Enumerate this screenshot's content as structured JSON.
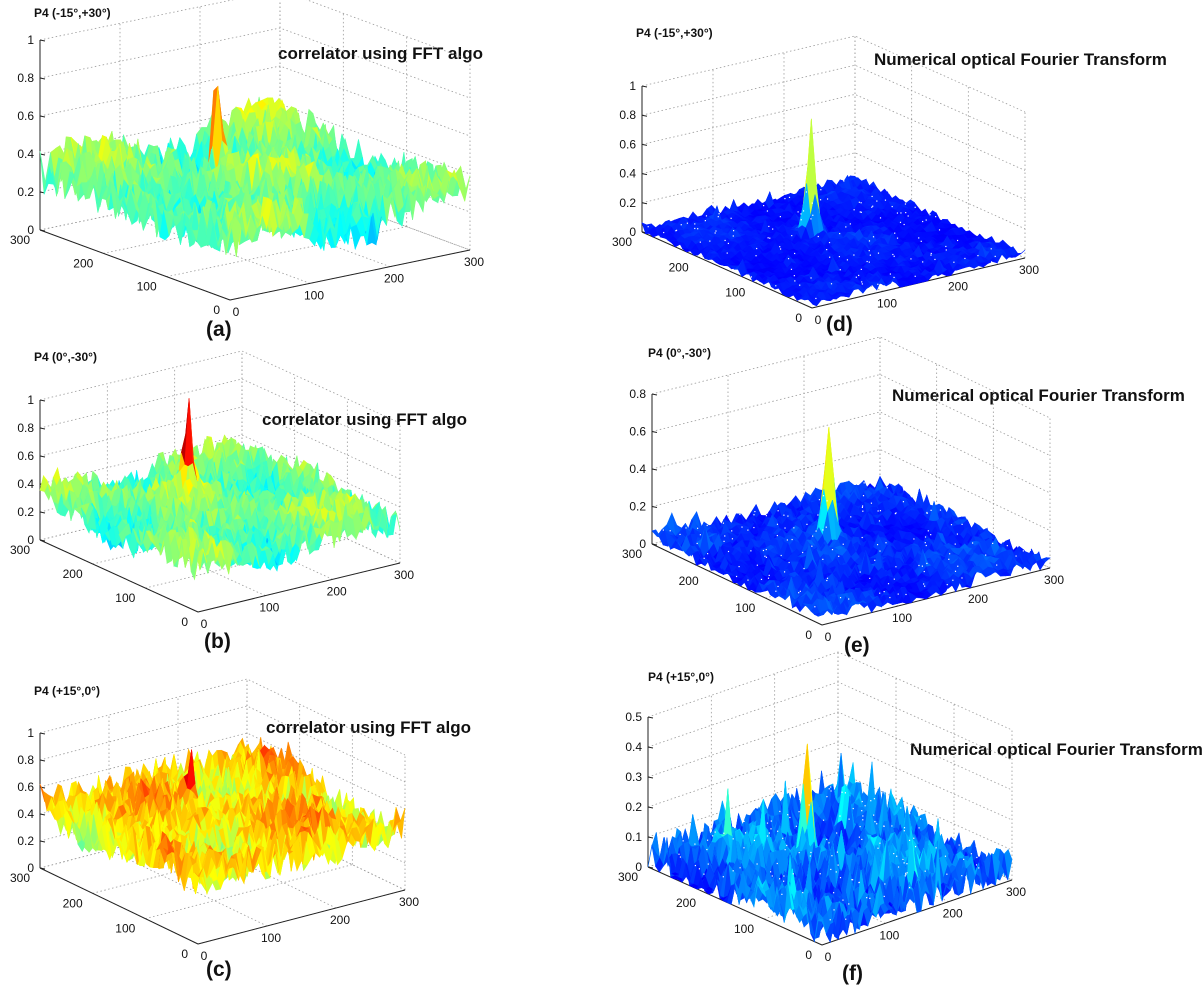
{
  "chart_data": [
    {
      "type": "surface",
      "panel": "(a)",
      "title": "P4 (-15°,+30°)",
      "label": "correlator using FFT algo",
      "zticks": [
        "0",
        "0.2",
        "0.4",
        "0.6",
        "0.8",
        "1"
      ],
      "zlim": [
        0,
        1
      ],
      "xticks": [
        "0",
        "100",
        "200",
        "300"
      ],
      "yticks": [
        "0",
        "100",
        "200",
        "300"
      ],
      "xlim": [
        0,
        300
      ],
      "ylim": [
        0,
        300
      ],
      "grid": true,
      "surface": {
        "baseline": 0.3,
        "noise": 0.12,
        "peak": 0.85,
        "peak_x": 150,
        "peak_y": 210,
        "colormap": "jet"
      }
    },
    {
      "type": "surface",
      "panel": "(b)",
      "title": "P4 (0°,-30°)",
      "label": "correlator using FFT algo",
      "zticks": [
        "0",
        "0.2",
        "0.4",
        "0.6",
        "0.8",
        "1"
      ],
      "zlim": [
        0,
        1
      ],
      "xticks": [
        "0",
        "100",
        "200",
        "300"
      ],
      "yticks": [
        "0",
        "100",
        "200",
        "300"
      ],
      "xlim": [
        0,
        300
      ],
      "ylim": [
        0,
        300
      ],
      "grid": true,
      "surface": {
        "baseline": 0.3,
        "noise": 0.12,
        "peak": 0.88,
        "peak_x": 150,
        "peak_y": 210,
        "colormap": "jet"
      }
    },
    {
      "type": "surface",
      "panel": "(c)",
      "title": "P4 (+15°,0°)",
      "label": "correlator using FFT algo",
      "zticks": [
        "0",
        "0.2",
        "0.4",
        "0.6",
        "0.8",
        "1"
      ],
      "zlim": [
        0,
        1
      ],
      "xticks": [
        "0",
        "100",
        "200",
        "300"
      ],
      "yticks": [
        "0",
        "100",
        "200",
        "300"
      ],
      "xlim": [
        0,
        300
      ],
      "ylim": [
        0,
        300
      ],
      "grid": true,
      "surface": {
        "baseline": 0.45,
        "noise": 0.15,
        "peak": 0.84,
        "peak_x": 150,
        "peak_y": 210,
        "colormap": "jet"
      }
    },
    {
      "type": "surface",
      "panel": "(d)",
      "title": "P4 (-15°,+30°)",
      "label": "Numerical optical Fourier Transform",
      "zticks": [
        "0",
        "0.2",
        "0.4",
        "0.6",
        "0.8",
        "1"
      ],
      "zlim": [
        0,
        1
      ],
      "xticks": [
        "0",
        "100",
        "200",
        "300"
      ],
      "yticks": [
        "0",
        "100",
        "200",
        "300"
      ],
      "xlim": [
        0,
        300
      ],
      "ylim": [
        0,
        300
      ],
      "grid": true,
      "surface": {
        "baseline": 0.02,
        "noise": 0.03,
        "peak": 0.78,
        "peak_x": 150,
        "peak_y": 190,
        "colormap": "jet"
      }
    },
    {
      "type": "surface",
      "panel": "(e)",
      "title": "P4 (0°,-30°)",
      "label": "Numerical optical Fourier Transform",
      "zticks": [
        "0",
        "0.2",
        "0.4",
        "0.6",
        "0.8"
      ],
      "zlim": [
        0,
        0.8
      ],
      "xticks": [
        "0",
        "100",
        "200",
        "300"
      ],
      "yticks": [
        "0",
        "100",
        "200",
        "300"
      ],
      "xlim": [
        0,
        300
      ],
      "ylim": [
        0,
        300
      ],
      "grid": true,
      "surface": {
        "baseline": 0.03,
        "noise": 0.04,
        "peak": 0.65,
        "peak_x": 150,
        "peak_y": 190,
        "colormap": "jet"
      }
    },
    {
      "type": "surface",
      "panel": "(f)",
      "title": "P4 (+15°,0°)",
      "label": "Numerical optical Fourier Transform",
      "zticks": [
        "0",
        "0.1",
        "0.2",
        "0.3",
        "0.4",
        "0.5"
      ],
      "zlim": [
        0,
        0.5
      ],
      "xticks": [
        "0",
        "100",
        "200",
        "300"
      ],
      "yticks": [
        "0",
        "100",
        "200",
        "300"
      ],
      "xlim": [
        0,
        300
      ],
      "ylim": [
        0,
        300
      ],
      "grid": true,
      "surface": {
        "baseline": 0.04,
        "noise": 0.06,
        "peak": 0.42,
        "peak_x": 150,
        "peak_y": 190,
        "colormap": "jet"
      }
    }
  ]
}
